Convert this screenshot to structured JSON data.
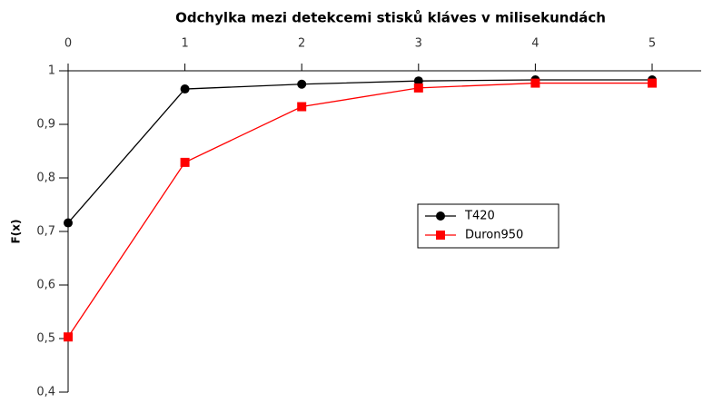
{
  "chart_data": {
    "type": "line",
    "title": "Odchylka mezi detekcemi stisků kláves v milisekundách",
    "y_label": "F(x)",
    "x": [
      0,
      1,
      2,
      3,
      4,
      5
    ],
    "series": [
      {
        "name": "T420",
        "color": "#000000",
        "marker": "circle",
        "values": [
          0.716,
          0.966,
          0.975,
          0.981,
          0.983,
          0.983
        ]
      },
      {
        "name": "Duron950",
        "color": "#ff0000",
        "marker": "square",
        "values": [
          0.503,
          0.829,
          0.933,
          0.968,
          0.977,
          0.977
        ]
      }
    ],
    "xlim": [
      0,
      5.4
    ],
    "xticks": [
      0,
      1,
      2,
      3,
      4,
      5
    ],
    "ylim": [
      0.4,
      1
    ],
    "yticks": [
      {
        "value": 0.4,
        "label": "0,4"
      },
      {
        "value": 0.5,
        "label": "0,5"
      },
      {
        "value": 0.6,
        "label": "0,6"
      },
      {
        "value": 0.7,
        "label": "0,7"
      },
      {
        "value": 0.8,
        "label": "0,8"
      },
      {
        "value": 0.9,
        "label": "0,9"
      },
      {
        "value": 1,
        "label": "1"
      }
    ],
    "legend": "center-right"
  }
}
